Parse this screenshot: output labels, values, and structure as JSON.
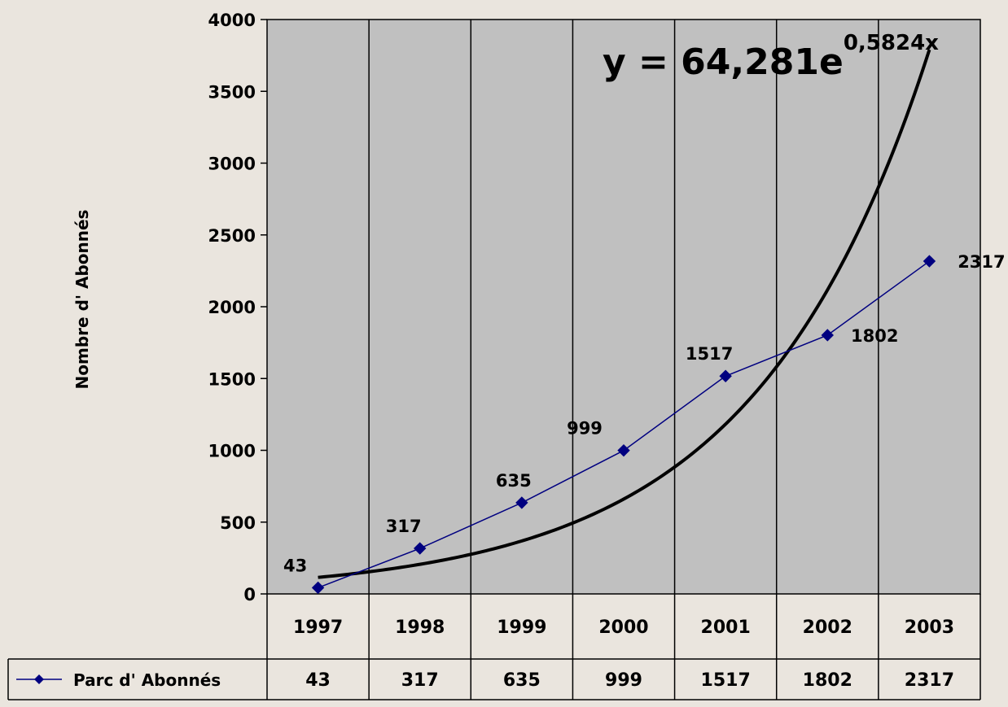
{
  "chart_data": {
    "type": "line",
    "title": "",
    "ylabel": "Nombre d' Abonnés",
    "xlabel": "",
    "categories": [
      "1997",
      "1998",
      "1999",
      "2000",
      "2001",
      "2002",
      "2003"
    ],
    "ylim": [
      0,
      4000
    ],
    "yticks": [
      0,
      500,
      1000,
      1500,
      2000,
      2500,
      3000,
      3500,
      4000
    ],
    "grid": "vertical lines between categories",
    "plot_background": "#c0c0c0",
    "series": [
      {
        "name": "Parc d' Abonnés",
        "values": [
          43,
          317,
          635,
          999,
          1517,
          1802,
          2317
        ],
        "labels": [
          "43",
          "317",
          "635",
          "999",
          "1517",
          "1802",
          "2317"
        ],
        "color": "#000080",
        "marker": "diamond"
      }
    ],
    "trendline": {
      "type": "exponential",
      "a": 64.281,
      "b": 0.5824,
      "equation_base": "y = 64,281e",
      "equation_exponent": "0,5824x",
      "color": "#000000"
    },
    "data_table": {
      "row_label": "Parc d' Abonnés",
      "values": [
        "43",
        "317",
        "635",
        "999",
        "1517",
        "1802",
        "2317"
      ]
    }
  }
}
